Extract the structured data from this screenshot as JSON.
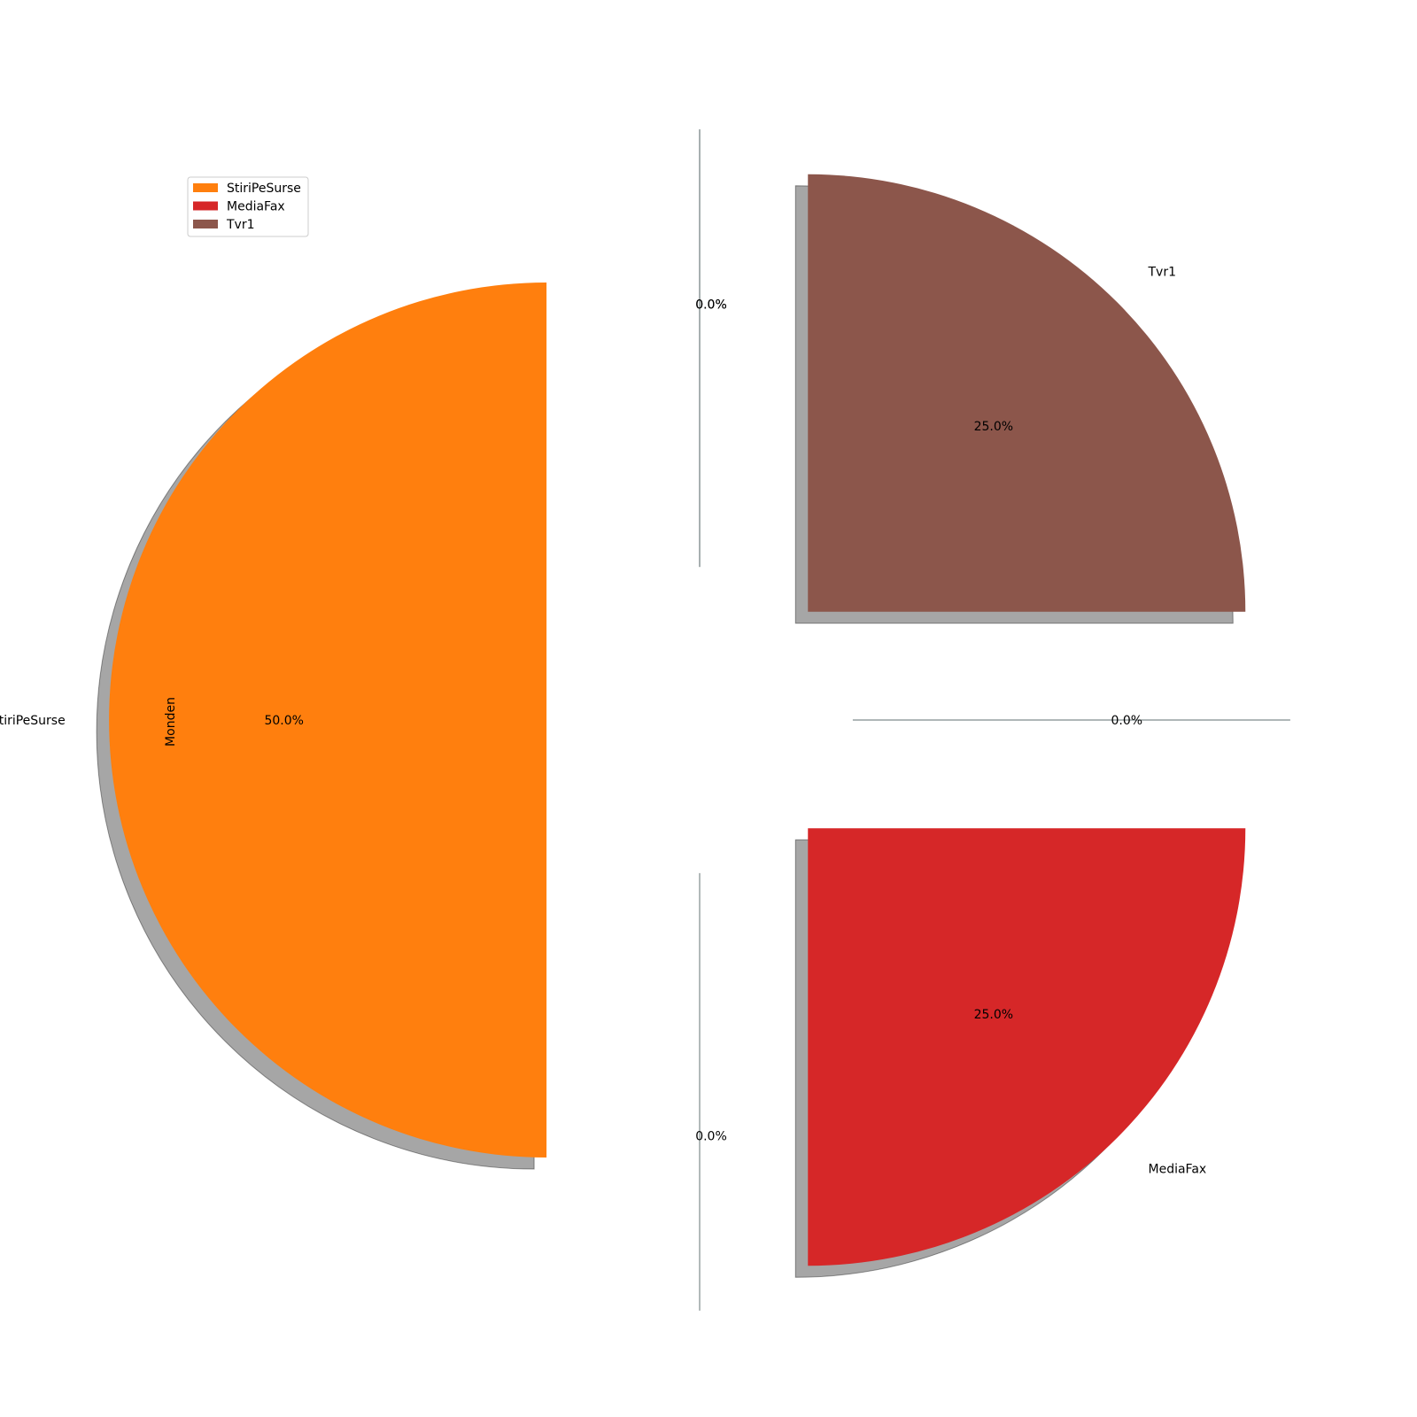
{
  "chart_data": {
    "type": "pie",
    "ylabel": "Monden",
    "slices": [
      {
        "label": "StiriPeSurse",
        "value": 50.0,
        "pct_label": "50.0%",
        "color": "#ff7f0e"
      },
      {
        "label": "MediaFax",
        "value": 25.0,
        "pct_label": "25.0%",
        "color": "#d62728"
      },
      {
        "label": "Tvr1",
        "value": 25.0,
        "pct_label": "25.0%",
        "color": "#8c564b"
      }
    ],
    "zero_slices": [
      {
        "pct_label": "0.0%"
      },
      {
        "pct_label": "0.0%"
      },
      {
        "pct_label": "0.0%"
      },
      {
        "pct_label": "0.0%"
      }
    ],
    "legend": {
      "placement": "upper-left",
      "entries": [
        {
          "label": "StiriPeSurse",
          "color": "#ff7f0e"
        },
        {
          "label": "MediaFax",
          "color": "#d62728"
        },
        {
          "label": "Tvr1",
          "color": "#8c564b"
        }
      ]
    },
    "shadow": true,
    "exploded": true
  }
}
